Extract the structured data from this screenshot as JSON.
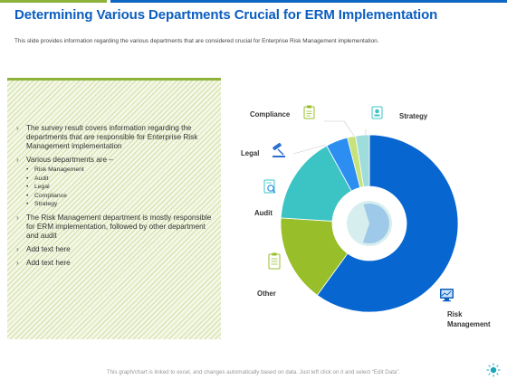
{
  "header": {
    "title": "Determining Various Departments Crucial for ERM Implementation",
    "subtitle": "This slide provides information regarding the various departments that are considered crucial for Enterprise Risk Management implementation."
  },
  "panel": {
    "bullets": [
      "The survey result covers information regarding the departments that are responsible for Enterprise Risk Management implementation",
      "Various departments are –",
      "The Risk Management department is mostly responsible for ERM implementation, followed by other department and audit",
      "Add text here",
      "Add text here"
    ],
    "sub_items": [
      "Risk Management",
      "Audit",
      "Legal",
      "Compliance",
      "Strategy"
    ]
  },
  "chart_data": {
    "type": "pie",
    "style": "donut",
    "categories": [
      "Risk Management",
      "Other",
      "Audit",
      "Legal",
      "Compliance",
      "Strategy"
    ],
    "values": [
      60,
      16,
      16,
      4,
      1.5,
      2.5
    ],
    "colors": [
      "#0766cf",
      "#98be29",
      "#3cc4c4",
      "#2c8ef0",
      "#c7e27a",
      "#9fdcdc"
    ],
    "labels": [
      "Risk Management",
      "Other",
      "Audit",
      "Legal",
      "Compliance",
      "Strategy"
    ],
    "title": ""
  },
  "footer": {
    "note": "This graph/chart is linked to excel, and changes automatically based on data. Just left click on it and select “Edit Data”."
  }
}
